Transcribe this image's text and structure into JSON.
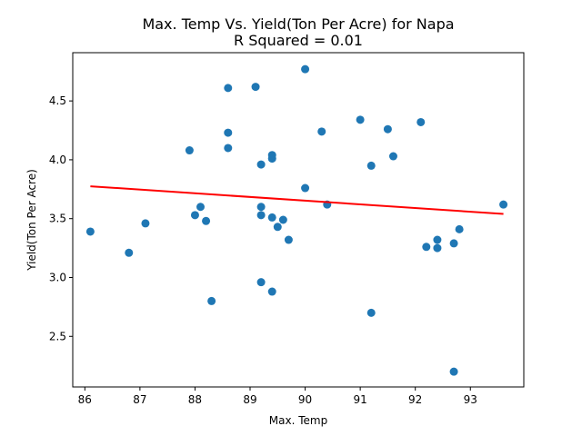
{
  "chart_data": {
    "type": "scatter",
    "title": "Max. Temp Vs. Yield(Ton Per Acre) for Napa",
    "subtitle": "R Squared =  0.01",
    "xlabel": "Max. Temp",
    "ylabel": "Yield(Ton Per Acre)",
    "xlim": [
      85.78,
      93.97
    ],
    "ylim": [
      2.07,
      4.91
    ],
    "xticks": [
      86,
      87,
      88,
      89,
      90,
      91,
      92,
      93
    ],
    "yticks": [
      2.5,
      3.0,
      3.5,
      4.0,
      4.5
    ],
    "xtick_labels": [
      "86",
      "87",
      "88",
      "89",
      "90",
      "91",
      "92",
      "93"
    ],
    "ytick_labels": [
      "2.5",
      "3.0",
      "3.5",
      "4.0",
      "4.5"
    ],
    "grid": false,
    "point_color": "#1f77b4",
    "line_color": "#ff0000",
    "points": [
      {
        "x": 86.1,
        "y": 3.39
      },
      {
        "x": 86.8,
        "y": 3.21
      },
      {
        "x": 87.1,
        "y": 3.46
      },
      {
        "x": 87.9,
        "y": 4.08
      },
      {
        "x": 88.0,
        "y": 3.53
      },
      {
        "x": 88.1,
        "y": 3.6
      },
      {
        "x": 88.2,
        "y": 3.48
      },
      {
        "x": 88.3,
        "y": 2.8
      },
      {
        "x": 88.6,
        "y": 4.61
      },
      {
        "x": 88.6,
        "y": 4.23
      },
      {
        "x": 88.6,
        "y": 4.1
      },
      {
        "x": 89.1,
        "y": 4.62
      },
      {
        "x": 89.2,
        "y": 3.96
      },
      {
        "x": 89.2,
        "y": 3.6
      },
      {
        "x": 89.2,
        "y": 3.53
      },
      {
        "x": 89.2,
        "y": 2.96
      },
      {
        "x": 89.4,
        "y": 4.04
      },
      {
        "x": 89.4,
        "y": 4.01
      },
      {
        "x": 89.4,
        "y": 3.51
      },
      {
        "x": 89.4,
        "y": 2.88
      },
      {
        "x": 89.5,
        "y": 3.43
      },
      {
        "x": 89.6,
        "y": 3.49
      },
      {
        "x": 89.7,
        "y": 3.32
      },
      {
        "x": 90.0,
        "y": 4.77
      },
      {
        "x": 90.0,
        "y": 3.76
      },
      {
        "x": 90.3,
        "y": 4.24
      },
      {
        "x": 90.4,
        "y": 3.62
      },
      {
        "x": 91.0,
        "y": 4.34
      },
      {
        "x": 91.2,
        "y": 3.95
      },
      {
        "x": 91.2,
        "y": 2.7
      },
      {
        "x": 91.5,
        "y": 4.26
      },
      {
        "x": 91.6,
        "y": 4.03
      },
      {
        "x": 92.1,
        "y": 4.32
      },
      {
        "x": 92.2,
        "y": 3.26
      },
      {
        "x": 92.4,
        "y": 3.32
      },
      {
        "x": 92.4,
        "y": 3.25
      },
      {
        "x": 92.7,
        "y": 3.29
      },
      {
        "x": 92.7,
        "y": 2.2
      },
      {
        "x": 92.8,
        "y": 3.41
      },
      {
        "x": 93.6,
        "y": 3.62
      }
    ],
    "regression_line": {
      "x": [
        86.1,
        93.6
      ],
      "y": [
        3.775,
        3.54
      ]
    }
  }
}
